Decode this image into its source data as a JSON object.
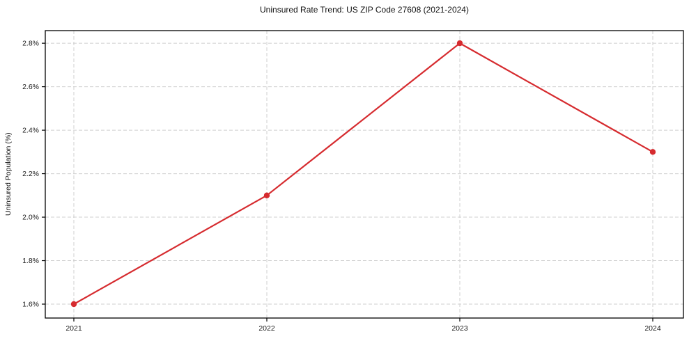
{
  "chart_data": {
    "type": "line",
    "title": "Uninsured Rate Trend: US ZIP Code 27608 (2021-2024)",
    "xlabel": "",
    "ylabel": "Uninsured Population (%)",
    "categories": [
      "2021",
      "2022",
      "2023",
      "2024"
    ],
    "series": [
      {
        "name": "Uninsured Population (%)",
        "values": [
          1.6,
          2.1,
          2.8,
          2.3
        ],
        "color": "#d62b2f",
        "marker": "circle"
      }
    ],
    "y_ticks": [
      1.6,
      1.8,
      2.0,
      2.2,
      2.4,
      2.6,
      2.8
    ],
    "y_tick_labels": [
      "1.6%",
      "1.8%",
      "2.0%",
      "2.2%",
      "2.4%",
      "2.6%",
      "2.8%"
    ],
    "ylim": [
      1.536,
      2.858
    ],
    "grid": "dashed-both",
    "grid_color": "#cfcfcf",
    "border_color": "#000000",
    "tick_label_color": "#1a1a1a",
    "legend_position": "none"
  }
}
